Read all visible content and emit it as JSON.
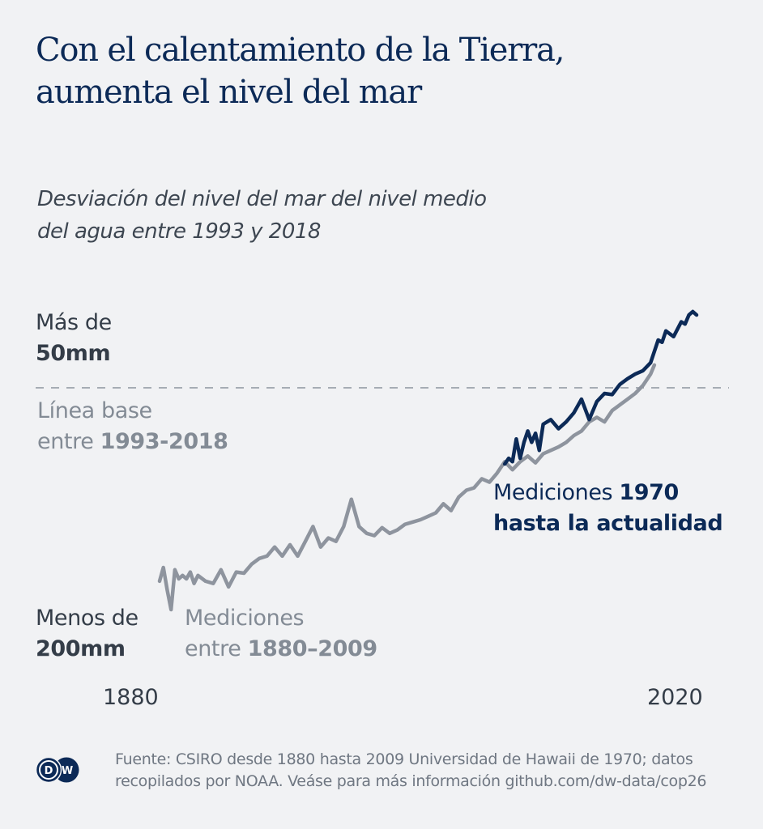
{
  "header": {
    "title_line1": "Con el calentamiento de la Tierra,",
    "title_line2": "aumenta el nivel del mar",
    "subtitle_line1": "Desviación del nivel del mar del nivel medio",
    "subtitle_line2": "del agua entre 1993 y 2018"
  },
  "annotations": {
    "top_label_line1": "Más de",
    "top_label_value": "50mm",
    "baseline_label_line1": "Línea base",
    "baseline_label_prefix": "entre ",
    "baseline_label_range": "1993-2018",
    "bottom_label_line1": "Menos de",
    "bottom_label_value": "200mm",
    "old_series_label_line1": "Mediciones",
    "old_series_label_prefix": "entre ",
    "old_series_label_range": "1880–2009",
    "new_series_label_prefix": "Mediciones ",
    "new_series_label_year": "1970",
    "new_series_label_line2": "hasta la actualidad"
  },
  "footer": {
    "source_line1": "Fuente: CSIRO desde 1880 hasta 2009 Universidad de Hawaii de 1970; datos",
    "source_line2": "recopilados por NOAA. Veáse para más información github.com/dw-data/cop26",
    "logo_text": "DW"
  },
  "colors": {
    "background": "#f1f2f4",
    "title": "#0c2a57",
    "old_series": "#8e949e",
    "new_series": "#0c2a57",
    "baseline": "#8e949e"
  },
  "chart_data": {
    "type": "line",
    "title": "Con el calentamiento de la Tierra, aumenta el nivel del mar",
    "subtitle": "Desviación del nivel del mar del nivel medio del agua entre 1993 y 2018",
    "xlabel": "",
    "ylabel": "mm",
    "x_ticks": [
      "1880",
      "2020"
    ],
    "xlim": [
      1880,
      2020
    ],
    "ylim": [
      -200,
      67
    ],
    "grid": false,
    "baseline": {
      "value": 0,
      "label": "Línea base entre 1993-2018",
      "style": "dashed"
    },
    "series": [
      {
        "name": "Mediciones entre 1880–2009 (CSIRO)",
        "x": [
          1880,
          1881,
          1882,
          1883,
          1884,
          1885,
          1886,
          1887,
          1888,
          1889,
          1890,
          1892,
          1894,
          1896,
          1898,
          1900,
          1902,
          1904,
          1906,
          1908,
          1910,
          1912,
          1914,
          1916,
          1918,
          1920,
          1922,
          1924,
          1926,
          1928,
          1930,
          1932,
          1934,
          1936,
          1938,
          1940,
          1942,
          1944,
          1946,
          1948,
          1950,
          1952,
          1954,
          1956,
          1958,
          1960,
          1962,
          1964,
          1966,
          1968,
          1970,
          1972,
          1974,
          1976,
          1978,
          1980,
          1982,
          1984,
          1986,
          1988,
          1990,
          1992,
          1994,
          1996,
          1998,
          2000,
          2002,
          2004,
          2006,
          2008,
          2009
        ],
        "values": [
          -170,
          -158,
          -178,
          -195,
          -160,
          -168,
          -165,
          -168,
          -162,
          -172,
          -165,
          -170,
          -172,
          -160,
          -175,
          -162,
          -163,
          -155,
          -150,
          -148,
          -140,
          -148,
          -138,
          -148,
          -135,
          -122,
          -140,
          -132,
          -135,
          -122,
          -98,
          -122,
          -128,
          -130,
          -123,
          -128,
          -125,
          -120,
          -118,
          -116,
          -113,
          -110,
          -102,
          -108,
          -96,
          -90,
          -88,
          -80,
          -83,
          -75,
          -65,
          -72,
          -65,
          -60,
          -66,
          -58,
          -55,
          -52,
          -48,
          -42,
          -38,
          -30,
          -26,
          -30,
          -20,
          -15,
          -10,
          -5,
          2,
          12,
          20
        ]
      },
      {
        "name": "Mediciones 1970 hasta la actualidad (Universidad de Hawaii)",
        "x": [
          1970,
          1971,
          1972,
          1973,
          1974,
          1975,
          1976,
          1977,
          1978,
          1979,
          1980,
          1982,
          1984,
          1986,
          1988,
          1990,
          1992,
          1994,
          1996,
          1998,
          2000,
          2002,
          2004,
          2006,
          2008,
          2010,
          2011,
          2012,
          2014,
          2016,
          2017,
          2018,
          2019,
          2020
        ],
        "values": [
          -67,
          -62,
          -65,
          -45,
          -62,
          -48,
          -38,
          -48,
          -40,
          -55,
          -32,
          -28,
          -36,
          -30,
          -22,
          -10,
          -28,
          -12,
          -5,
          -6,
          3,
          8,
          12,
          15,
          22,
          42,
          40,
          50,
          45,
          58,
          56,
          64,
          67,
          64
        ]
      }
    ]
  }
}
